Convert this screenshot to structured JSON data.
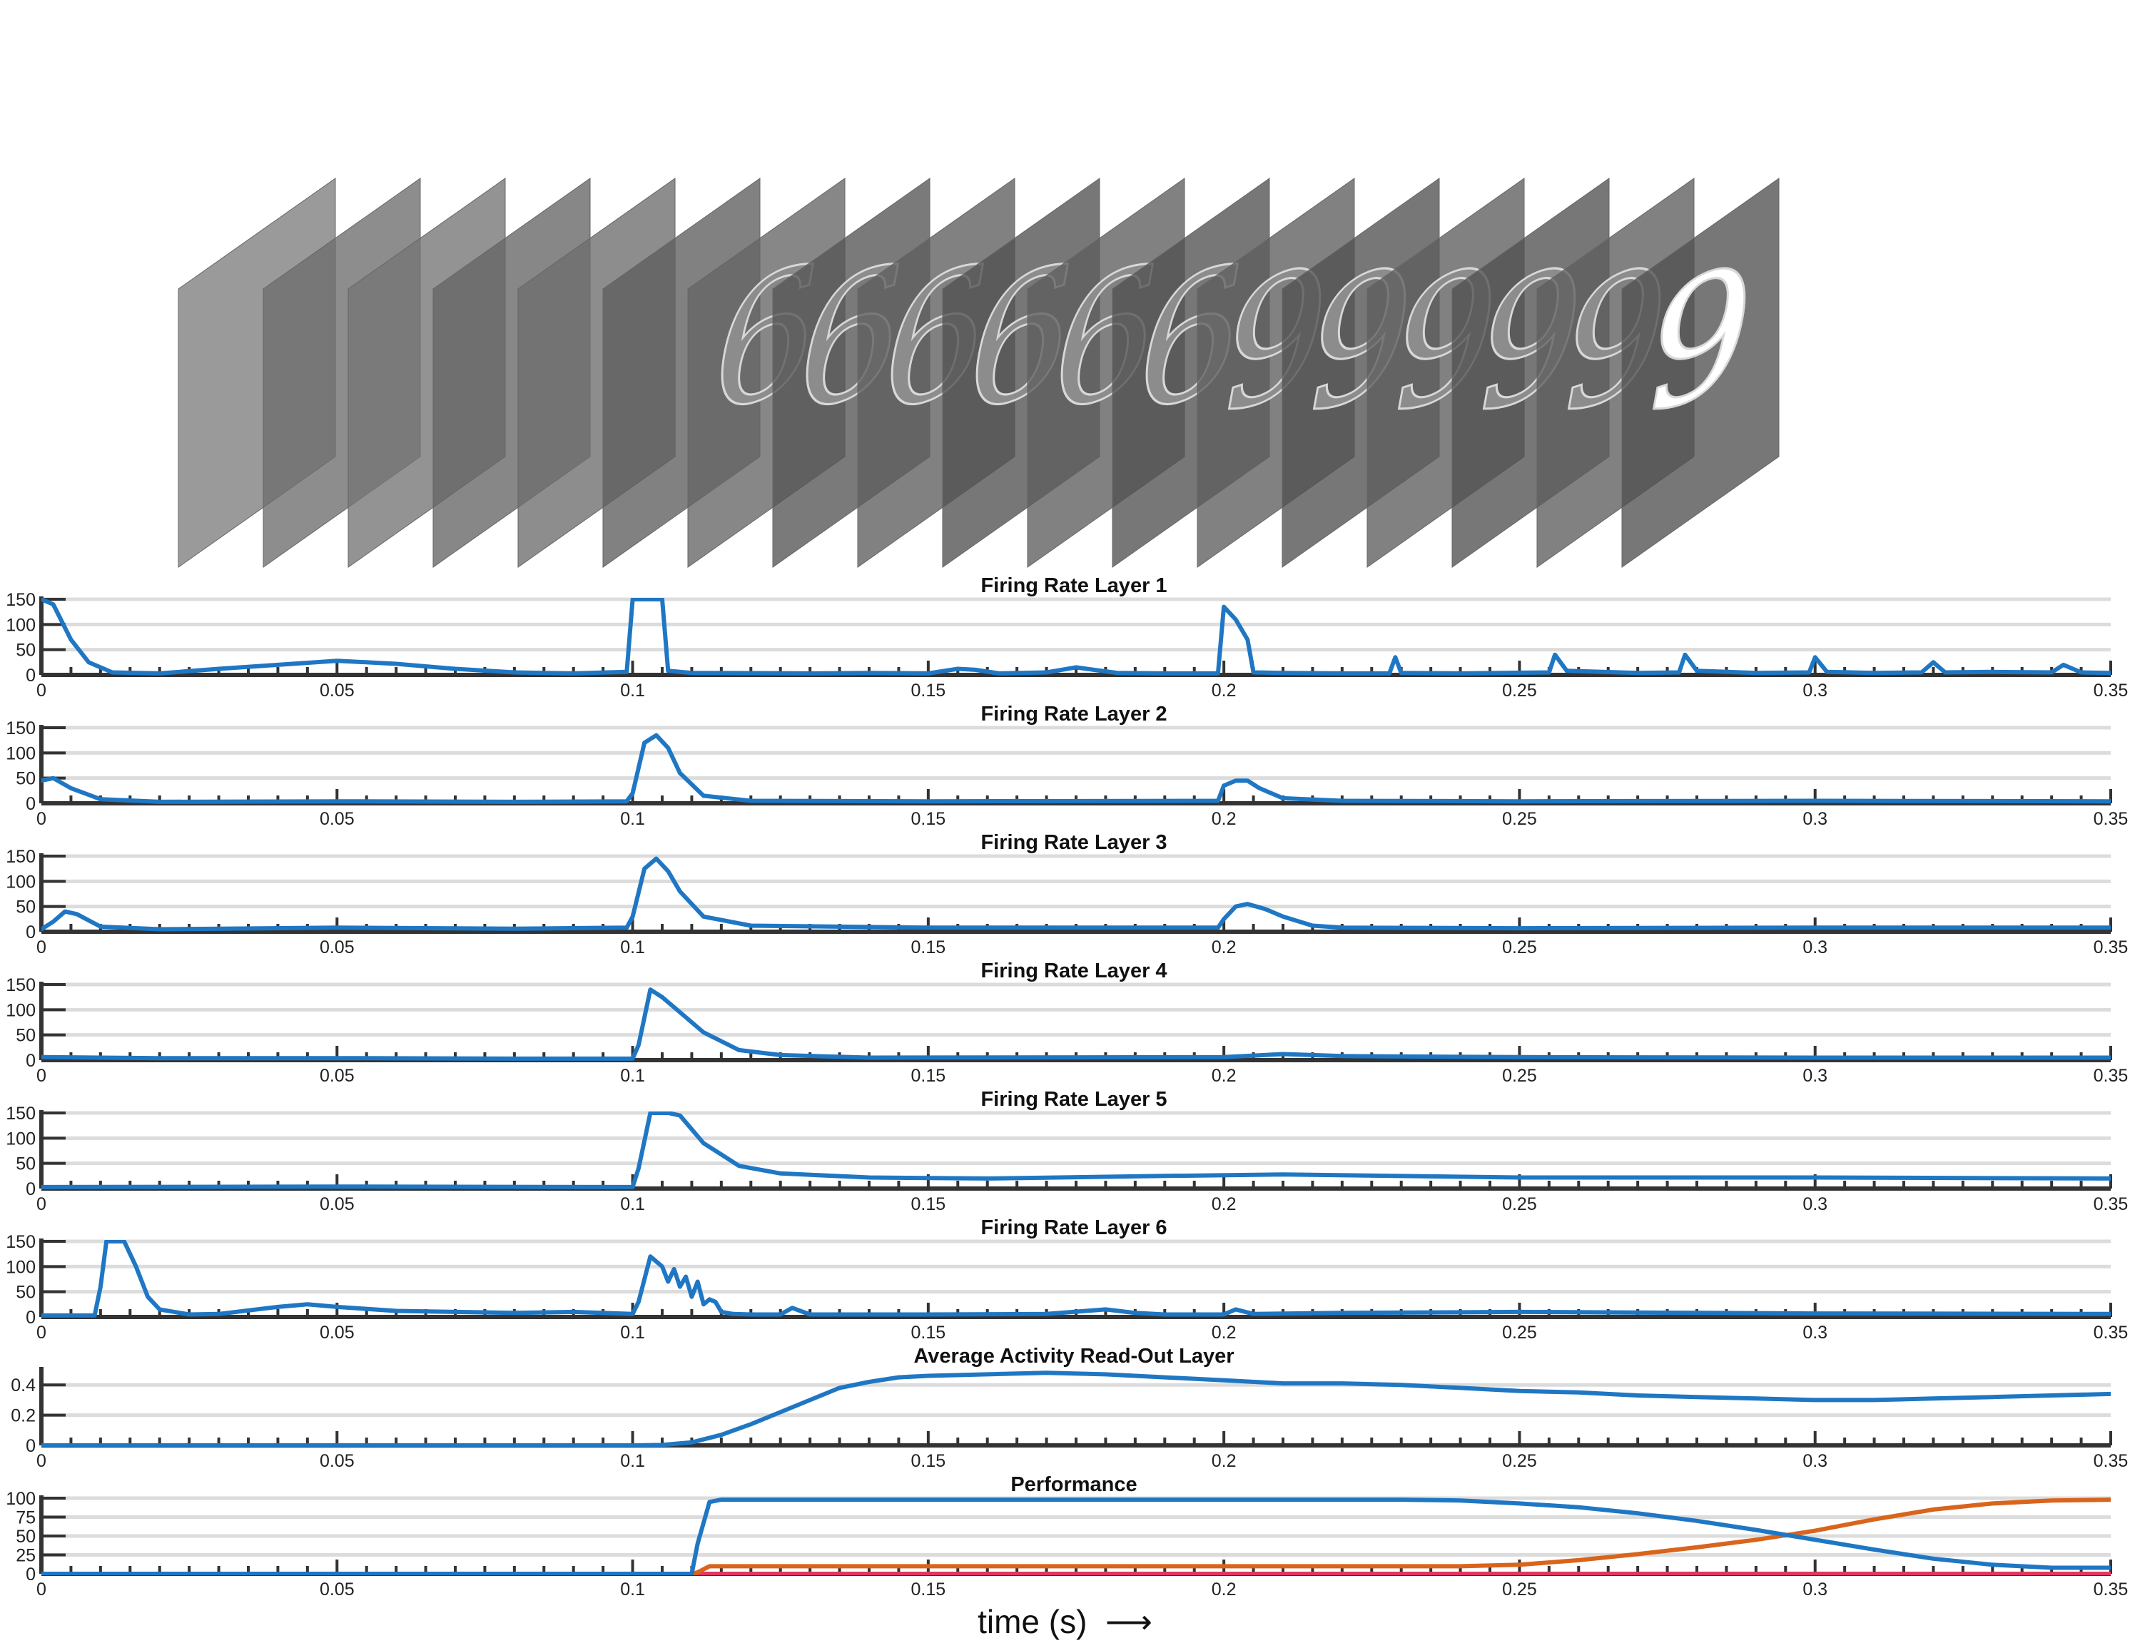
{
  "figure": {
    "x_axis_caption": "time (s)",
    "caption_arrow_icon": "right-arrow-icon"
  },
  "stimulus": {
    "frames": [
      {
        "digit": ""
      },
      {
        "digit": ""
      },
      {
        "digit": ""
      },
      {
        "digit": ""
      },
      {
        "digit": ""
      },
      {
        "digit": ""
      },
      {
        "digit": "6"
      },
      {
        "digit": "6"
      },
      {
        "digit": "6"
      },
      {
        "digit": "6"
      },
      {
        "digit": "6"
      },
      {
        "digit": "6"
      },
      {
        "digit": "9"
      },
      {
        "digit": "9"
      },
      {
        "digit": "9"
      },
      {
        "digit": "9"
      },
      {
        "digit": "9"
      },
      {
        "digit": "9"
      }
    ]
  },
  "chart_data": [
    {
      "type": "line",
      "title": "Firing Rate Layer 1",
      "xlim": [
        0,
        0.35
      ],
      "ylim": [
        0,
        150
      ],
      "yticks": [
        0,
        50,
        100,
        150
      ],
      "xticks": [
        0,
        0.05,
        0.1,
        0.15,
        0.2,
        0.25,
        0.3,
        0.35
      ],
      "grid": true,
      "series": [
        {
          "color": "#1f77c4",
          "x": [
            0,
            0.002,
            0.005,
            0.008,
            0.012,
            0.02,
            0.03,
            0.04,
            0.05,
            0.06,
            0.07,
            0.08,
            0.09,
            0.099,
            0.1,
            0.101,
            0.104,
            0.105,
            0.106,
            0.11,
            0.13,
            0.14,
            0.15,
            0.155,
            0.158,
            0.162,
            0.17,
            0.175,
            0.178,
            0.182,
            0.19,
            0.199,
            0.2,
            0.202,
            0.204,
            0.205,
            0.21,
            0.22,
            0.228,
            0.229,
            0.23,
            0.24,
            0.255,
            0.256,
            0.258,
            0.27,
            0.277,
            0.278,
            0.28,
            0.29,
            0.299,
            0.3,
            0.302,
            0.31,
            0.318,
            0.32,
            0.322,
            0.33,
            0.34,
            0.342,
            0.345,
            0.35
          ],
          "y": [
            150,
            140,
            70,
            25,
            5,
            3,
            12,
            20,
            28,
            22,
            12,
            5,
            3,
            6,
            150,
            150,
            150,
            150,
            8,
            4,
            3,
            4,
            3,
            12,
            10,
            3,
            5,
            15,
            10,
            4,
            3,
            3,
            135,
            110,
            70,
            5,
            4,
            3,
            3,
            35,
            4,
            3,
            5,
            40,
            8,
            4,
            5,
            40,
            8,
            4,
            5,
            35,
            6,
            4,
            5,
            25,
            5,
            6,
            5,
            20,
            5,
            4
          ]
        }
      ]
    },
    {
      "type": "line",
      "title": "Firing Rate Layer 2",
      "xlim": [
        0,
        0.35
      ],
      "ylim": [
        0,
        150
      ],
      "yticks": [
        0,
        50,
        100,
        150
      ],
      "xticks": [
        0,
        0.05,
        0.1,
        0.15,
        0.2,
        0.25,
        0.3,
        0.35
      ],
      "grid": true,
      "series": [
        {
          "color": "#1f77c4",
          "x": [
            0,
            0.002,
            0.005,
            0.01,
            0.02,
            0.05,
            0.08,
            0.099,
            0.1,
            0.102,
            0.104,
            0.106,
            0.108,
            0.112,
            0.12,
            0.15,
            0.199,
            0.2,
            0.202,
            0.204,
            0.206,
            0.21,
            0.22,
            0.25,
            0.3,
            0.35
          ],
          "y": [
            45,
            50,
            30,
            8,
            3,
            4,
            3,
            4,
            20,
            120,
            135,
            110,
            60,
            15,
            5,
            4,
            5,
            35,
            45,
            45,
            30,
            10,
            5,
            4,
            5,
            4
          ]
        }
      ]
    },
    {
      "type": "line",
      "title": "Firing Rate Layer 3",
      "xlim": [
        0,
        0.35
      ],
      "ylim": [
        0,
        150
      ],
      "yticks": [
        0,
        50,
        100,
        150
      ],
      "xticks": [
        0,
        0.05,
        0.1,
        0.15,
        0.2,
        0.25,
        0.3,
        0.35
      ],
      "grid": true,
      "series": [
        {
          "color": "#1f77c4",
          "x": [
            0,
            0.002,
            0.004,
            0.006,
            0.01,
            0.02,
            0.05,
            0.08,
            0.099,
            0.1,
            0.102,
            0.104,
            0.106,
            0.108,
            0.112,
            0.12,
            0.15,
            0.199,
            0.2,
            0.202,
            0.204,
            0.207,
            0.21,
            0.215,
            0.22,
            0.25,
            0.3,
            0.35
          ],
          "y": [
            5,
            20,
            40,
            35,
            10,
            5,
            8,
            6,
            8,
            30,
            125,
            145,
            120,
            80,
            30,
            12,
            8,
            8,
            25,
            50,
            55,
            45,
            30,
            12,
            8,
            7,
            8,
            8
          ]
        }
      ]
    },
    {
      "type": "line",
      "title": "Firing Rate Layer 4",
      "xlim": [
        0,
        0.35
      ],
      "ylim": [
        0,
        150
      ],
      "yticks": [
        0,
        50,
        100,
        150
      ],
      "xticks": [
        0,
        0.05,
        0.1,
        0.15,
        0.2,
        0.25,
        0.3,
        0.35
      ],
      "grid": true,
      "series": [
        {
          "color": "#1f77c4",
          "x": [
            0,
            0.02,
            0.05,
            0.08,
            0.1,
            0.101,
            0.103,
            0.105,
            0.108,
            0.112,
            0.118,
            0.125,
            0.14,
            0.2,
            0.21,
            0.22,
            0.25,
            0.3,
            0.35
          ],
          "y": [
            6,
            4,
            4,
            3,
            3,
            30,
            140,
            125,
            95,
            55,
            20,
            10,
            5,
            6,
            12,
            8,
            6,
            5,
            5
          ]
        }
      ]
    },
    {
      "type": "line",
      "title": "Firing Rate Layer 5",
      "xlim": [
        0,
        0.35
      ],
      "ylim": [
        0,
        150
      ],
      "yticks": [
        0,
        50,
        100,
        150
      ],
      "xticks": [
        0,
        0.05,
        0.1,
        0.15,
        0.2,
        0.25,
        0.3,
        0.35
      ],
      "grid": true,
      "series": [
        {
          "color": "#1f77c4",
          "x": [
            0,
            0.05,
            0.1,
            0.101,
            0.103,
            0.104,
            0.106,
            0.108,
            0.112,
            0.118,
            0.125,
            0.14,
            0.16,
            0.19,
            0.21,
            0.25,
            0.3,
            0.35
          ],
          "y": [
            3,
            4,
            3,
            40,
            150,
            150,
            150,
            145,
            90,
            45,
            30,
            22,
            20,
            25,
            28,
            22,
            22,
            20
          ]
        }
      ]
    },
    {
      "type": "line",
      "title": "Firing Rate Layer 6",
      "xlim": [
        0,
        0.35
      ],
      "ylim": [
        0,
        150
      ],
      "yticks": [
        0,
        50,
        100,
        150
      ],
      "xticks": [
        0,
        0.05,
        0.1,
        0.15,
        0.2,
        0.25,
        0.3,
        0.35
      ],
      "grid": true,
      "series": [
        {
          "color": "#1f77c4",
          "x": [
            0,
            0.009,
            0.01,
            0.011,
            0.012,
            0.014,
            0.016,
            0.018,
            0.02,
            0.025,
            0.03,
            0.04,
            0.045,
            0.05,
            0.06,
            0.07,
            0.08,
            0.09,
            0.1,
            0.101,
            0.103,
            0.105,
            0.106,
            0.107,
            0.108,
            0.109,
            0.11,
            0.111,
            0.112,
            0.113,
            0.114,
            0.115,
            0.117,
            0.12,
            0.125,
            0.127,
            0.13,
            0.15,
            0.17,
            0.18,
            0.185,
            0.19,
            0.2,
            0.202,
            0.205,
            0.22,
            0.25,
            0.3,
            0.35
          ],
          "y": [
            3,
            3,
            60,
            150,
            150,
            150,
            100,
            40,
            15,
            5,
            6,
            20,
            25,
            20,
            12,
            10,
            8,
            10,
            6,
            30,
            120,
            100,
            70,
            95,
            60,
            80,
            40,
            70,
            25,
            35,
            30,
            10,
            6,
            5,
            5,
            18,
            5,
            5,
            6,
            15,
            8,
            5,
            5,
            15,
            6,
            8,
            10,
            7,
            6
          ]
        }
      ]
    },
    {
      "type": "line",
      "title": "Average Activity Read-Out Layer",
      "xlim": [
        0,
        0.35
      ],
      "ylim": [
        0,
        0.5
      ],
      "yticks": [
        0,
        0.2,
        0.4
      ],
      "xticks": [
        0,
        0.05,
        0.1,
        0.15,
        0.2,
        0.25,
        0.3,
        0.35
      ],
      "grid": true,
      "series": [
        {
          "color": "#1f77c4",
          "x": [
            0,
            0.1,
            0.105,
            0.11,
            0.115,
            0.12,
            0.125,
            0.13,
            0.135,
            0.14,
            0.145,
            0.15,
            0.16,
            0.17,
            0.18,
            0.19,
            0.2,
            0.21,
            0.22,
            0.23,
            0.24,
            0.25,
            0.26,
            0.27,
            0.28,
            0.29,
            0.3,
            0.31,
            0.32,
            0.33,
            0.34,
            0.35
          ],
          "y": [
            0,
            0,
            0.003,
            0.02,
            0.07,
            0.14,
            0.22,
            0.3,
            0.38,
            0.42,
            0.45,
            0.46,
            0.47,
            0.48,
            0.47,
            0.45,
            0.43,
            0.41,
            0.41,
            0.4,
            0.38,
            0.36,
            0.35,
            0.33,
            0.32,
            0.31,
            0.3,
            0.3,
            0.31,
            0.32,
            0.33,
            0.34
          ]
        }
      ]
    },
    {
      "type": "line",
      "title": "Performance",
      "xlim": [
        0,
        0.35
      ],
      "ylim": [
        0,
        100
      ],
      "yticks": [
        0,
        25,
        50,
        75,
        100
      ],
      "xticks": [
        0,
        0.05,
        0.1,
        0.15,
        0.2,
        0.25,
        0.3,
        0.35
      ],
      "grid": true,
      "series": [
        {
          "color": "#e0385f",
          "x": [
            0,
            0.11,
            0.25,
            0.35
          ],
          "y": [
            0,
            0,
            0,
            0
          ]
        },
        {
          "color": "#d9641c",
          "x": [
            0,
            0.11,
            0.111,
            0.113,
            0.15,
            0.2,
            0.24,
            0.25,
            0.26,
            0.27,
            0.28,
            0.29,
            0.3,
            0.31,
            0.32,
            0.33,
            0.34,
            0.35
          ],
          "y": [
            0,
            0,
            2,
            10,
            10,
            10,
            10,
            12,
            18,
            26,
            35,
            45,
            57,
            72,
            85,
            93,
            97,
            98
          ]
        },
        {
          "color": "#1f77c4",
          "x": [
            0,
            0.11,
            0.111,
            0.113,
            0.115,
            0.15,
            0.2,
            0.23,
            0.24,
            0.25,
            0.26,
            0.27,
            0.28,
            0.29,
            0.3,
            0.31,
            0.32,
            0.33,
            0.34,
            0.35
          ],
          "y": [
            0,
            0,
            40,
            95,
            98,
            98,
            98,
            98,
            97,
            93,
            88,
            80,
            70,
            58,
            45,
            32,
            20,
            12,
            8,
            8
          ]
        }
      ]
    }
  ]
}
